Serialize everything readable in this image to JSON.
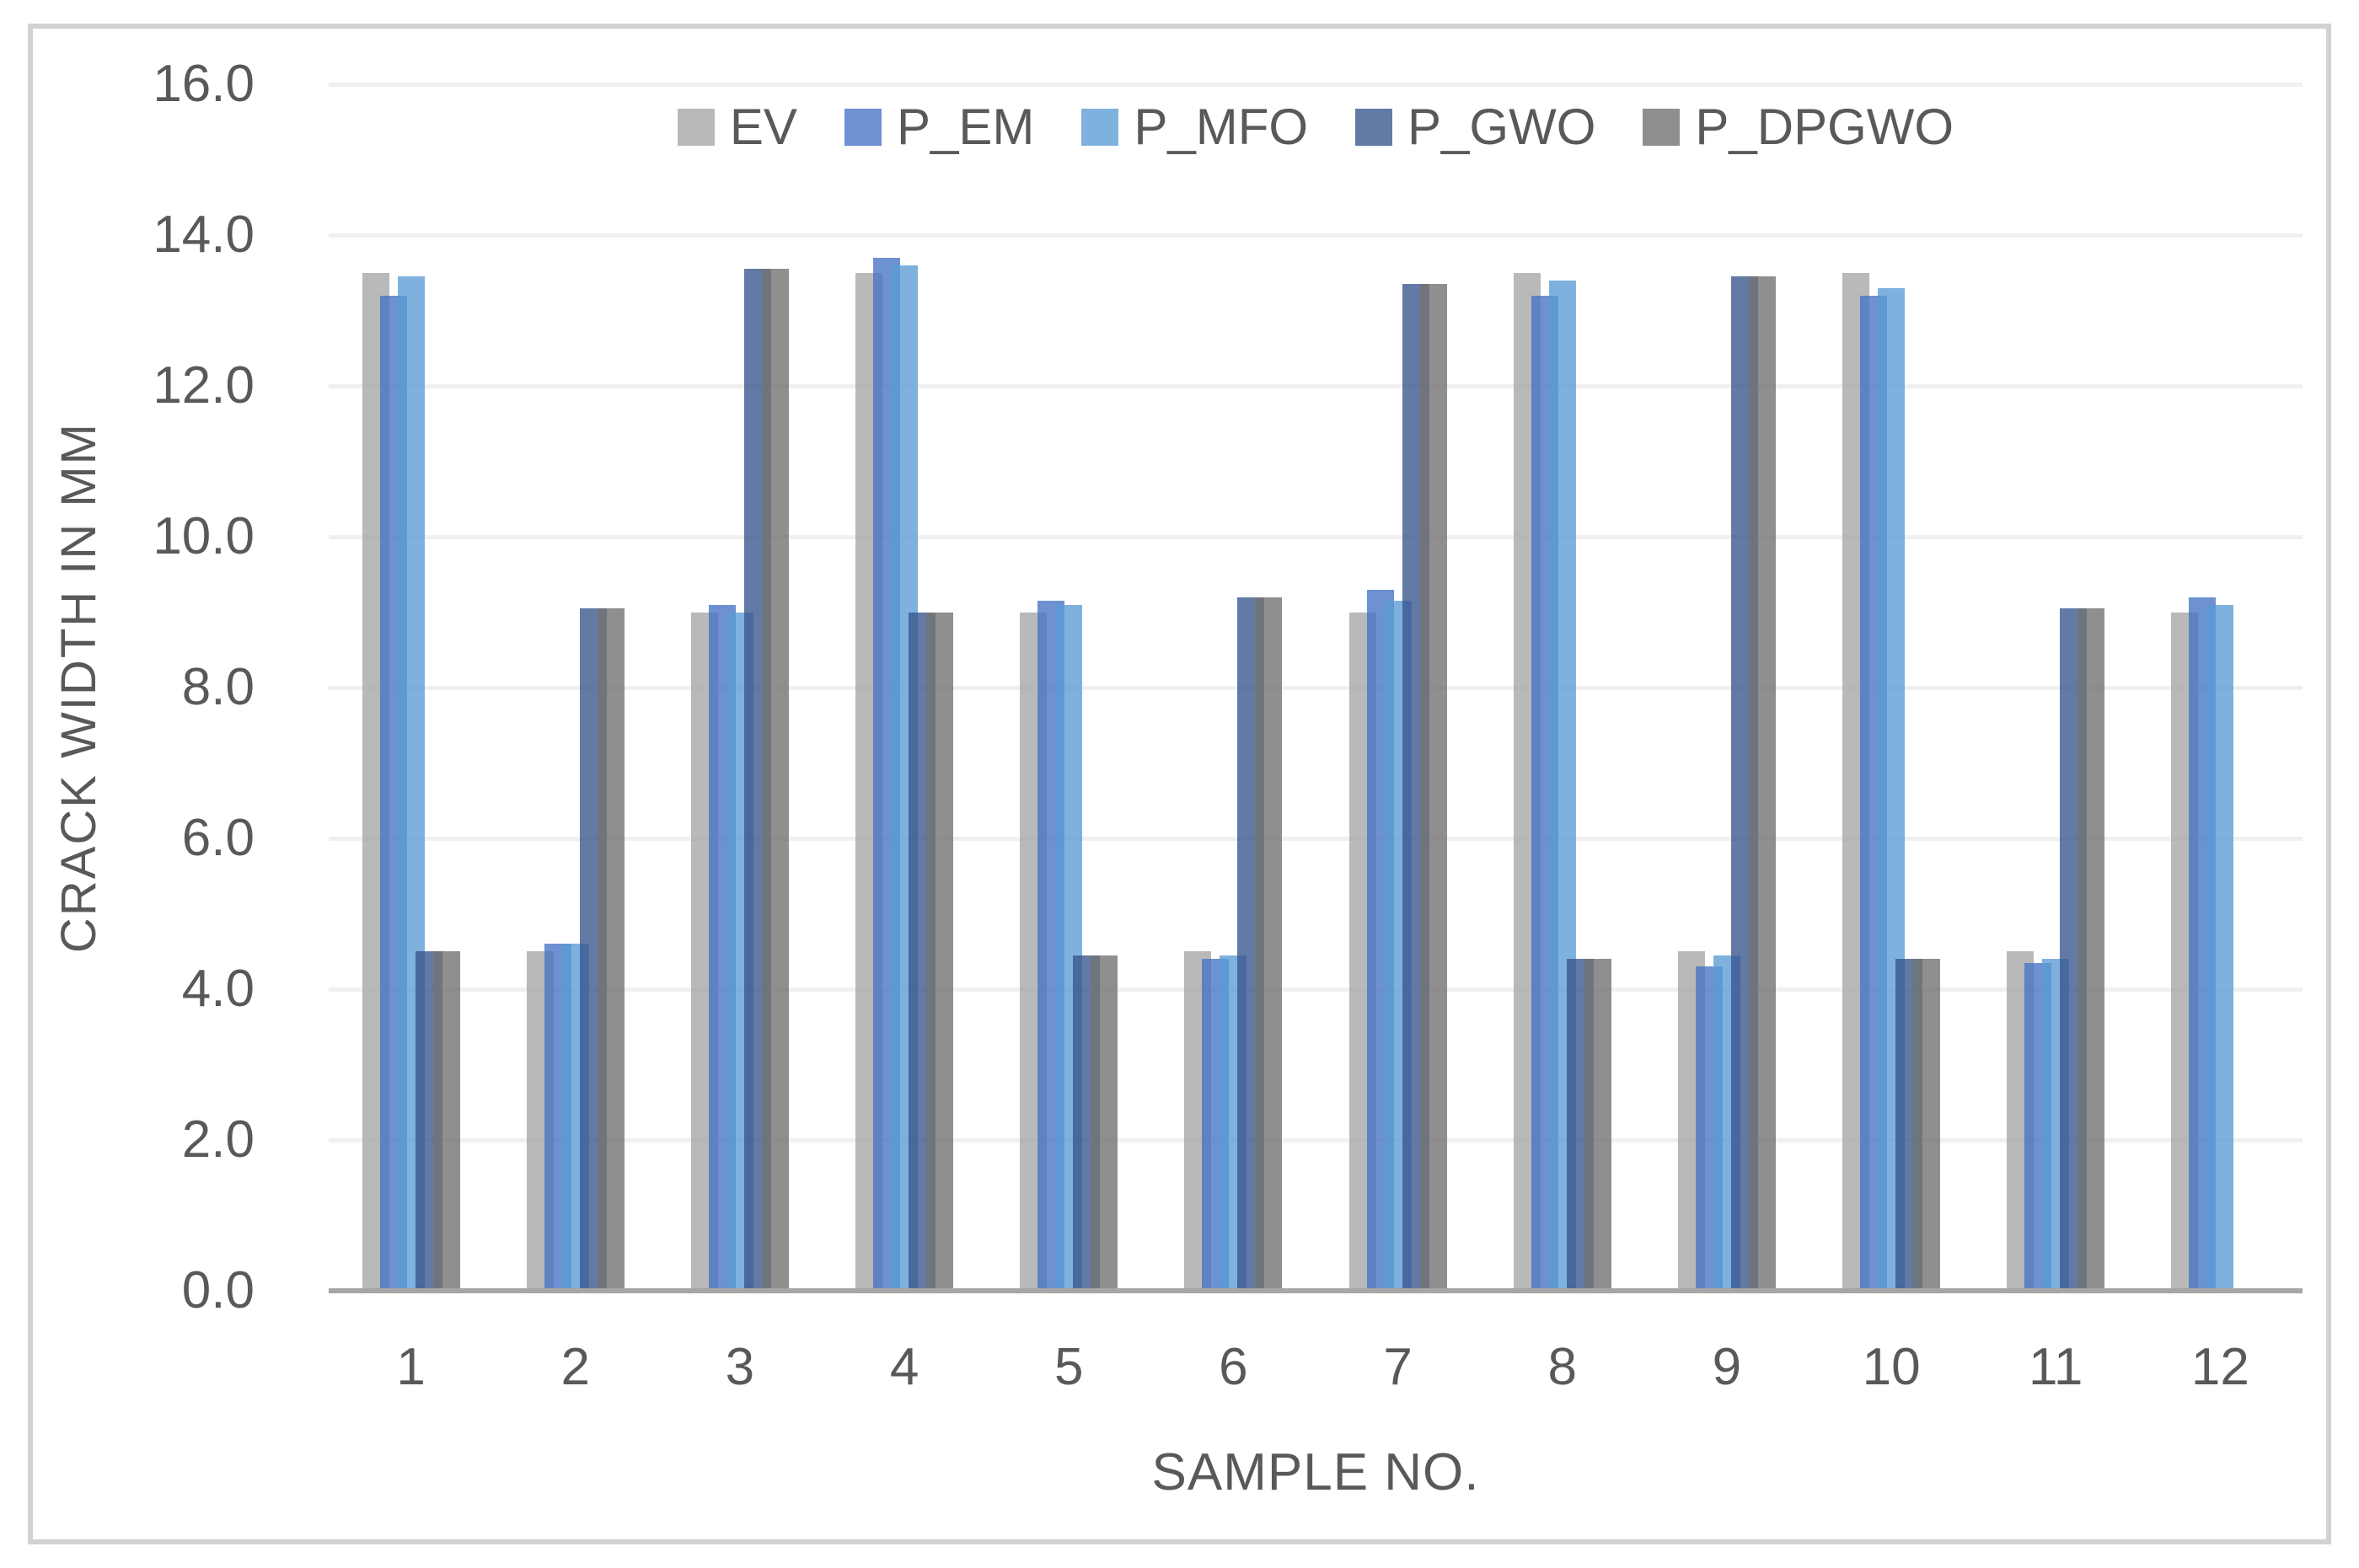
{
  "colors": {
    "text": "#595959",
    "gridline": "#f0f0f0",
    "axis_line": "#a6a6a6",
    "frame_border": "#d2d2d2",
    "background": "#ffffff"
  },
  "chart_data": {
    "type": "bar",
    "title": "",
    "xlabel": "SAMPLE NO.",
    "ylabel": "CRACK WIDTH IN MM",
    "categories": [
      "1",
      "2",
      "3",
      "4",
      "5",
      "6",
      "7",
      "8",
      "9",
      "10",
      "11",
      "12"
    ],
    "series": [
      {
        "name": "EV",
        "color": "rgba(165,165,165,0.78)",
        "values": [
          13.5,
          4.5,
          9.0,
          13.5,
          9.0,
          4.5,
          9.0,
          13.5,
          4.5,
          13.5,
          4.5,
          9.0
        ]
      },
      {
        "name": "P_EM",
        "color": "rgba(68,114,196,0.78)",
        "values": [
          13.2,
          4.6,
          9.1,
          13.7,
          9.15,
          4.4,
          9.3,
          13.2,
          4.3,
          13.2,
          4.35,
          9.2
        ]
      },
      {
        "name": "P_MFO",
        "color": "rgba(91,155,213,0.78)",
        "values": [
          13.45,
          4.6,
          9.0,
          13.6,
          9.1,
          4.45,
          9.15,
          13.4,
          4.45,
          13.3,
          4.4,
          9.1
        ]
      },
      {
        "name": "P_GWO",
        "color": "rgba(55,84,140,0.78)",
        "values": [
          4.5,
          9.05,
          13.55,
          9.0,
          4.45,
          9.2,
          13.35,
          4.4,
          13.45,
          4.4,
          9.05,
          0
        ]
      },
      {
        "name": "P_DPGWO",
        "color": "rgba(115,115,115,0.8)",
        "values": [
          4.5,
          9.05,
          13.55,
          9.0,
          4.45,
          9.2,
          13.35,
          4.4,
          13.45,
          4.4,
          9.05,
          0
        ]
      }
    ],
    "ylim": [
      0,
      16
    ],
    "ytick_step": 2,
    "ytick_labels": [
      "0.0",
      "2.0",
      "4.0",
      "6.0",
      "8.0",
      "10.0",
      "12.0",
      "14.0",
      "16.0"
    ],
    "grid": true,
    "legend_position": "top"
  }
}
